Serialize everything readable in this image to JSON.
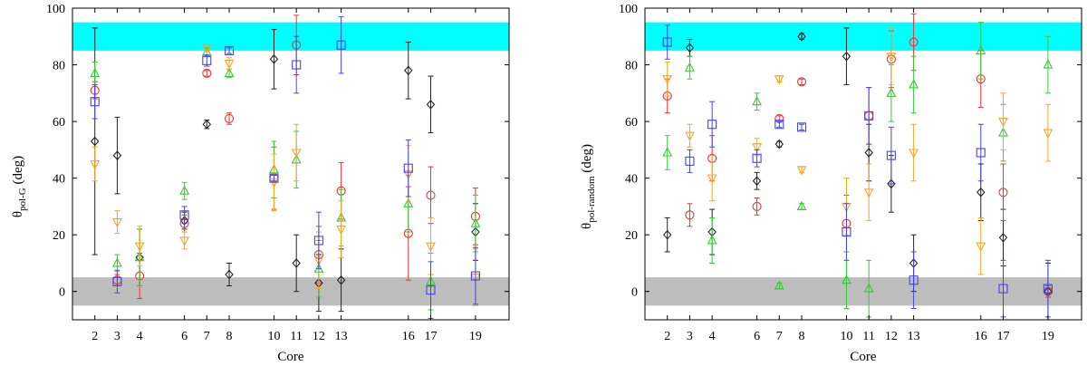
{
  "colors": {
    "black": "#222222",
    "red": "#ee3333",
    "green": "#33cc33",
    "blue": "#4444ee",
    "orange": "#f5a623",
    "cyan_band": "#00ffff",
    "gray_band": "#bdbdbd"
  },
  "chart_data": [
    {
      "type": "scatter",
      "name": "pol-G",
      "xlabel": "Core",
      "ylabel_main": "θ",
      "ylabel_sub": "pol-G",
      "ylabel_unit": "(deg)",
      "xlim": [
        1,
        20.5
      ],
      "ylim": [
        -10,
        100
      ],
      "xticks": [
        2,
        3,
        4,
        6,
        7,
        8,
        10,
        11,
        12,
        13,
        16,
        17,
        19
      ],
      "yticks": [
        0,
        20,
        40,
        60,
        80,
        100
      ],
      "bands": [
        {
          "color": "cyan_band",
          "y0": 85,
          "y1": 95
        },
        {
          "color": "gray_band",
          "y0": -5,
          "y1": 5
        }
      ],
      "series": [
        {
          "name": "diamond",
          "marker": "diamond",
          "color": "black",
          "points": [
            {
              "x": 2,
              "y": 53,
              "err": 40
            },
            {
              "x": 3,
              "y": 48,
              "err": 13.5
            },
            {
              "x": 4,
              "y": 12,
              "err": 10
            },
            {
              "x": 6,
              "y": 25,
              "err": 3
            },
            {
              "x": 7,
              "y": 59,
              "err": 1.5
            },
            {
              "x": 8,
              "y": 6,
              "err": 4
            },
            {
              "x": 10,
              "y": 82,
              "err": 10.5
            },
            {
              "x": 11,
              "y": 10,
              "err": 10
            },
            {
              "x": 12,
              "y": 3,
              "err": 10
            },
            {
              "x": 13,
              "y": 4,
              "err": 11
            },
            {
              "x": 16,
              "y": 78,
              "err": 10
            },
            {
              "x": 17,
              "y": 66,
              "err": 10
            },
            {
              "x": 19,
              "y": 21,
              "err": 10
            }
          ]
        },
        {
          "name": "circle",
          "marker": "circle",
          "color": "red",
          "points": [
            {
              "x": 2,
              "y": 71,
              "err": 3
            },
            {
              "x": 3,
              "y": 4,
              "err": 2
            },
            {
              "x": 4,
              "y": 5.5,
              "err": 8
            },
            {
              "x": 6,
              "y": 24,
              "err": 3
            },
            {
              "x": 7,
              "y": 77,
              "err": 1
            },
            {
              "x": 8,
              "y": 61,
              "err": 2
            },
            {
              "x": 10,
              "y": 40,
              "err": 11
            },
            {
              "x": 11,
              "y": 87,
              "err": 10.5
            },
            {
              "x": 12,
              "y": 13,
              "err": 10
            },
            {
              "x": 13,
              "y": 35.5,
              "err": 10
            },
            {
              "x": 16,
              "y": 20.5,
              "err": 16.5
            },
            {
              "x": 17,
              "y": 34,
              "err": 10
            },
            {
              "x": 19,
              "y": 26.5,
              "err": 10
            }
          ]
        },
        {
          "name": "triangle-up",
          "marker": "triangle-up",
          "color": "green",
          "points": [
            {
              "x": 2,
              "y": 77,
              "err": 4
            },
            {
              "x": 3,
              "y": 10,
              "err": 3
            },
            {
              "x": 4,
              "y": 12,
              "err": 10
            },
            {
              "x": 6,
              "y": 35.5,
              "err": 3
            },
            {
              "x": 7,
              "y": 84.5,
              "err": 1.5
            },
            {
              "x": 8,
              "y": 77,
              "err": 1.5
            },
            {
              "x": 10,
              "y": 43,
              "err": 10
            },
            {
              "x": 11,
              "y": 46.5,
              "err": 10
            },
            {
              "x": 12,
              "y": 8,
              "err": 10
            },
            {
              "x": 13,
              "y": 26,
              "err": 10
            },
            {
              "x": 16,
              "y": 31,
              "err": 10
            },
            {
              "x": 17,
              "y": 3.5,
              "err": 10
            },
            {
              "x": 19,
              "y": 24,
              "err": 10
            }
          ]
        },
        {
          "name": "triangle-down",
          "marker": "triangle-down",
          "color": "orange",
          "points": [
            {
              "x": 2,
              "y": 45,
              "err": 6
            },
            {
              "x": 3,
              "y": 24.5,
              "err": 4
            },
            {
              "x": 4,
              "y": 16,
              "err": 7
            },
            {
              "x": 6,
              "y": 18,
              "err": 3
            },
            {
              "x": 7,
              "y": 86,
              "err": 1
            },
            {
              "x": 8,
              "y": 80.5,
              "err": 2
            },
            {
              "x": 10,
              "y": 38.5,
              "err": 10
            },
            {
              "x": 11,
              "y": 49,
              "err": 10
            },
            {
              "x": 12,
              "y": 11,
              "err": 10
            },
            {
              "x": 13,
              "y": 22,
              "err": 10
            },
            {
              "x": 16,
              "y": 41.5,
              "err": 10
            },
            {
              "x": 17,
              "y": 16,
              "err": 10
            },
            {
              "x": 19,
              "y": 5,
              "err": 10
            }
          ]
        },
        {
          "name": "square",
          "marker": "square",
          "color": "blue",
          "points": [
            {
              "x": 2,
              "y": 67,
              "err": 6
            },
            {
              "x": 3,
              "y": 3.5,
              "err": 4
            },
            {
              "x": 6,
              "y": 27,
              "err": 3
            },
            {
              "x": 7,
              "y": 81.5,
              "err": 2
            },
            {
              "x": 8,
              "y": 85,
              "err": 1
            },
            {
              "x": 10,
              "y": 40,
              "err": 1
            },
            {
              "x": 11,
              "y": 80,
              "err": 10
            },
            {
              "x": 12,
              "y": 18,
              "err": 10
            },
            {
              "x": 13,
              "y": 87,
              "err": 10
            },
            {
              "x": 16,
              "y": 43.5,
              "err": 10
            },
            {
              "x": 17,
              "y": 0.5,
              "err": 10
            },
            {
              "x": 19,
              "y": 5.5,
              "err": 10
            }
          ]
        }
      ]
    },
    {
      "type": "scatter",
      "name": "pol-random",
      "xlabel": "Core",
      "ylabel_main": "θ",
      "ylabel_sub": "pol-random",
      "ylabel_unit": "(deg)",
      "xlim": [
        1,
        20.5
      ],
      "ylim": [
        -10,
        100
      ],
      "xticks": [
        2,
        3,
        4,
        6,
        7,
        8,
        10,
        11,
        12,
        13,
        16,
        17,
        19
      ],
      "yticks": [
        0,
        20,
        40,
        60,
        80,
        100
      ],
      "bands": [
        {
          "color": "cyan_band",
          "y0": 85,
          "y1": 95
        },
        {
          "color": "gray_band",
          "y0": -5,
          "y1": 5
        }
      ],
      "series": [
        {
          "name": "diamond",
          "marker": "diamond",
          "color": "black",
          "points": [
            {
              "x": 2,
              "y": 20,
              "err": 6
            },
            {
              "x": 3,
              "y": 86,
              "err": 3
            },
            {
              "x": 4,
              "y": 21,
              "err": 8
            },
            {
              "x": 6,
              "y": 39,
              "err": 3
            },
            {
              "x": 7,
              "y": 52,
              "err": 1
            },
            {
              "x": 8,
              "y": 90,
              "err": 1
            },
            {
              "x": 10,
              "y": 83,
              "err": 10
            },
            {
              "x": 11,
              "y": 49,
              "err": 10
            },
            {
              "x": 12,
              "y": 38,
              "err": 10
            },
            {
              "x": 13,
              "y": 10,
              "err": 10
            },
            {
              "x": 16,
              "y": 35,
              "err": 10
            },
            {
              "x": 17,
              "y": 19,
              "err": 10
            },
            {
              "x": 19,
              "y": 0,
              "err": 10
            }
          ]
        },
        {
          "name": "circle",
          "marker": "circle",
          "color": "red",
          "points": [
            {
              "x": 2,
              "y": 69,
              "err": 6
            },
            {
              "x": 3,
              "y": 27,
              "err": 4
            },
            {
              "x": 4,
              "y": 47,
              "err": 8
            },
            {
              "x": 6,
              "y": 30,
              "err": 3
            },
            {
              "x": 7,
              "y": 61,
              "err": 1
            },
            {
              "x": 8,
              "y": 74,
              "err": 1
            },
            {
              "x": 10,
              "y": 24,
              "err": 10
            },
            {
              "x": 11,
              "y": 62,
              "err": 10
            },
            {
              "x": 12,
              "y": 82,
              "err": 10
            },
            {
              "x": 13,
              "y": 88,
              "err": 10
            },
            {
              "x": 16,
              "y": 75,
              "err": 10
            },
            {
              "x": 17,
              "y": 35,
              "err": 10
            },
            {
              "x": 19,
              "y": 0,
              "err": 2
            }
          ]
        },
        {
          "name": "triangle-up",
          "marker": "triangle-up",
          "color": "green",
          "points": [
            {
              "x": 2,
              "y": 49,
              "err": 6
            },
            {
              "x": 3,
              "y": 79,
              "err": 4
            },
            {
              "x": 4,
              "y": 18,
              "err": 8
            },
            {
              "x": 6,
              "y": 67,
              "err": 3
            },
            {
              "x": 7,
              "y": 2,
              "err": 1
            },
            {
              "x": 8,
              "y": 30,
              "err": 1
            },
            {
              "x": 10,
              "y": 4,
              "err": 10
            },
            {
              "x": 11,
              "y": 1,
              "err": 10
            },
            {
              "x": 12,
              "y": 70,
              "err": 10
            },
            {
              "x": 13,
              "y": 73,
              "err": 10
            },
            {
              "x": 16,
              "y": 85,
              "err": 10
            },
            {
              "x": 17,
              "y": 56,
              "err": 10
            },
            {
              "x": 19,
              "y": 80,
              "err": 10
            }
          ]
        },
        {
          "name": "triangle-down",
          "marker": "triangle-down",
          "color": "orange",
          "points": [
            {
              "x": 2,
              "y": 75,
              "err": 6
            },
            {
              "x": 3,
              "y": 55,
              "err": 4
            },
            {
              "x": 4,
              "y": 40,
              "err": 8
            },
            {
              "x": 6,
              "y": 51,
              "err": 3
            },
            {
              "x": 7,
              "y": 75,
              "err": 1
            },
            {
              "x": 8,
              "y": 43,
              "err": 1
            },
            {
              "x": 10,
              "y": 30,
              "err": 10
            },
            {
              "x": 11,
              "y": 35,
              "err": 10
            },
            {
              "x": 12,
              "y": 83,
              "err": 10
            },
            {
              "x": 13,
              "y": 49,
              "err": 10
            },
            {
              "x": 16,
              "y": 16,
              "err": 10
            },
            {
              "x": 17,
              "y": 60,
              "err": 10
            },
            {
              "x": 19,
              "y": 56,
              "err": 10
            }
          ]
        },
        {
          "name": "square",
          "marker": "square",
          "color": "blue",
          "points": [
            {
              "x": 2,
              "y": 88,
              "err": 6
            },
            {
              "x": 3,
              "y": 46,
              "err": 4
            },
            {
              "x": 4,
              "y": 59,
              "err": 8
            },
            {
              "x": 6,
              "y": 47,
              "err": 3
            },
            {
              "x": 7,
              "y": 59,
              "err": 1
            },
            {
              "x": 8,
              "y": 58,
              "err": 1
            },
            {
              "x": 10,
              "y": 21,
              "err": 10
            },
            {
              "x": 11,
              "y": 62,
              "err": 10
            },
            {
              "x": 12,
              "y": 48,
              "err": 10
            },
            {
              "x": 13,
              "y": 4,
              "err": 10
            },
            {
              "x": 16,
              "y": 49,
              "err": 10
            },
            {
              "x": 17,
              "y": 1,
              "err": 10
            },
            {
              "x": 19,
              "y": 1,
              "err": 10
            }
          ]
        }
      ]
    }
  ]
}
